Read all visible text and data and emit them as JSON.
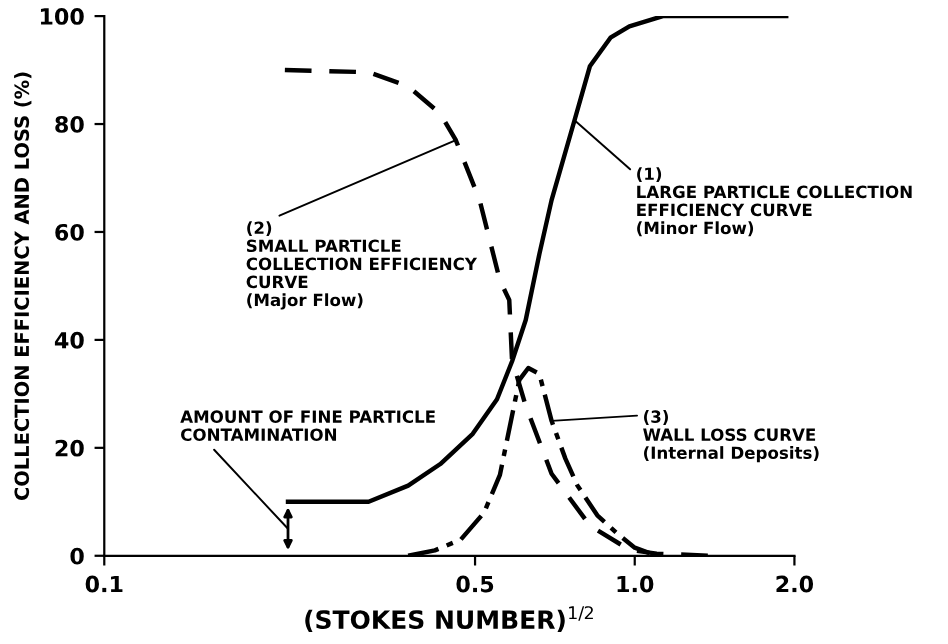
{
  "chart_data": {
    "type": "line",
    "xlabel": "(STOKES NUMBER)$^{1/2}$",
    "ylabel": "COLLECTION EFFICIENCY AND LOSS (%)",
    "log": "x",
    "xlim": [
      0.1,
      2.0
    ],
    "xticks": [
      0.1,
      0.5,
      {
        "value": 1,
        "label": "1.0"
      },
      {
        "value": 2,
        "label": "2.0"
      }
    ],
    "ylim": [
      0,
      100
    ],
    "yticks": [
      0,
      20,
      40,
      60,
      80,
      100
    ],
    "grid": false,
    "legend": false,
    "marker": "none",
    "series": [
      {
        "color": "#000000",
        "line_style": "solid",
        "x": [
          0.222,
          0.315,
          0.374,
          0.43,
          0.495,
          0.55,
          0.587,
          0.623,
          0.661,
          0.697,
          0.77,
          0.823,
          0.9,
          0.977,
          1.13,
          1.5,
          1.93
        ],
        "values": [
          10,
          10,
          13,
          17,
          22.6,
          29,
          36,
          43.7,
          55.9,
          65.9,
          80.7,
          90.7,
          96,
          98.1,
          100,
          100,
          100
        ]
      },
      {
        "color": "#000000",
        "line_style": "dashed",
        "x": [
          0.219,
          0.315,
          0.374,
          0.43,
          0.46,
          0.51,
          0.557,
          0.58,
          0.587,
          0.623,
          0.697,
          0.823,
          0.977,
          1.1,
          1.4
        ],
        "values": [
          90,
          89.6,
          87,
          81.9,
          77,
          65.9,
          51,
          47.4,
          36.3,
          27.8,
          15.2,
          5.6,
          1.1,
          0.4,
          0
        ]
      },
      {
        "color": "#000000",
        "line_style": "dashdot",
        "x": [
          0.374,
          0.42,
          0.47,
          0.52,
          0.557,
          0.606,
          0.63,
          0.661,
          0.697,
          0.74,
          0.78,
          0.85,
          0.93,
          1.0,
          1.1
        ],
        "values": [
          0,
          1,
          3,
          8,
          15,
          32.6,
          34.8,
          33.7,
          25,
          18,
          13,
          7.5,
          4,
          1.5,
          0
        ]
      }
    ],
    "annotations": [
      {
        "text": "(2)\nSMALL PARTICLE\nCOLLECTION EFFICIENCY\nCURVE\n(Major Flow)",
        "x": 0.46,
        "y": 77
      },
      {
        "text": "(1)\nLARGE PARTICLE COLLECTION\nEFFICIENCY CURVE\n(Minor Flow)",
        "x": 0.77,
        "y": 80.7
      },
      "AMOUNT OF FINE PARTICLE\nCONTAMINATION",
      {
        "text": "(3)\nWALL LOSS CURVE\n(Internal Deposits)",
        "x": 0.697,
        "y": 25
      }
    ]
  }
}
